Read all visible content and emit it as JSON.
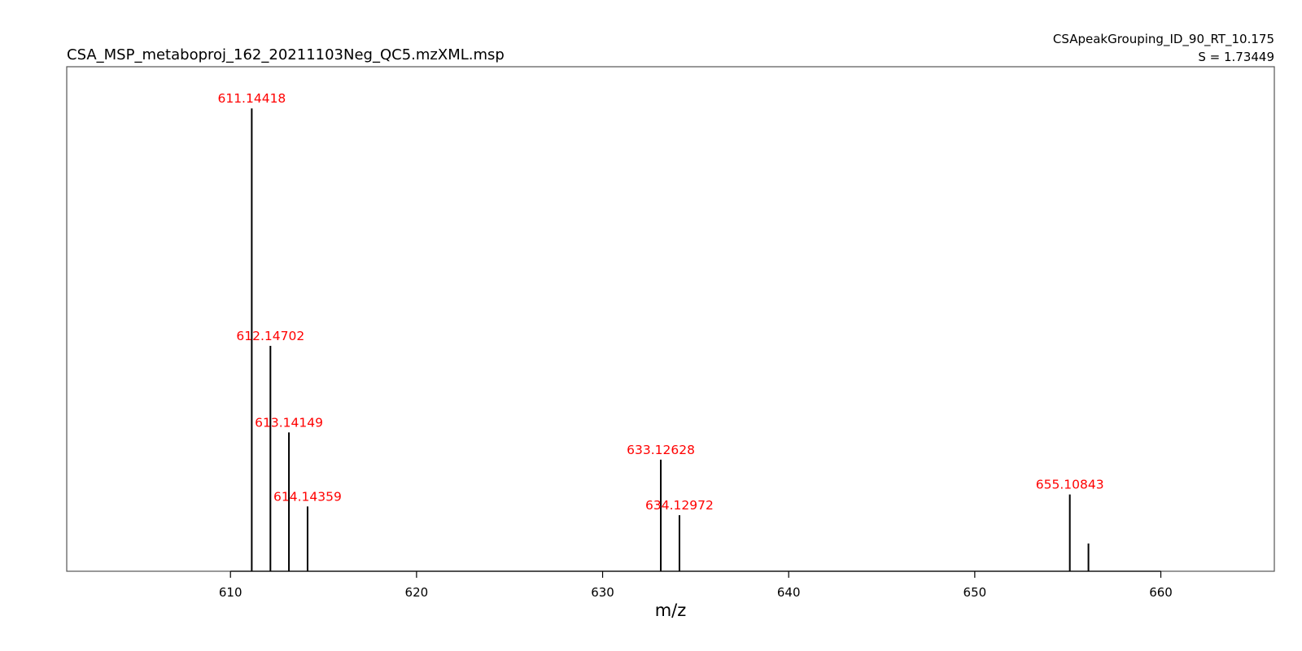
{
  "chart_data": {
    "type": "bar",
    "title": "CSA_MSP_metaboproj_162_20211103Neg_QC5.mzXML.msp",
    "subtitle_right": [
      "CSApeakGrouping_ID_90_RT_10.175",
      "S = 1.73449"
    ],
    "xlabel": "m/z",
    "ylabel": "",
    "xlim": [
      601.2,
      666.1
    ],
    "ylim": [
      0,
      1.09
    ],
    "x_ticks": [
      610,
      620,
      630,
      640,
      650,
      660
    ],
    "x_tick_labels": [
      "610",
      "620",
      "630",
      "640",
      "650",
      "660"
    ],
    "grid": false,
    "legend": "none",
    "peaks": [
      {
        "mz": 611.14418,
        "intensity": 1.0,
        "label": "611.14418"
      },
      {
        "mz": 612.14702,
        "intensity": 0.487,
        "label": "612.14702"
      },
      {
        "mz": 613.14149,
        "intensity": 0.3,
        "label": "613.14149"
      },
      {
        "mz": 614.14359,
        "intensity": 0.14,
        "label": "614.14359"
      },
      {
        "mz": 633.12628,
        "intensity": 0.241,
        "label": "633.12628"
      },
      {
        "mz": 634.12972,
        "intensity": 0.121,
        "label": "634.12972"
      },
      {
        "mz": 655.10843,
        "intensity": 0.166,
        "label": "655.10843"
      },
      {
        "mz": 656.11,
        "intensity": 0.06,
        "label": ""
      }
    ],
    "colors": {
      "peak": "#000000",
      "label": "#ff0000",
      "frame": "#000000"
    }
  }
}
